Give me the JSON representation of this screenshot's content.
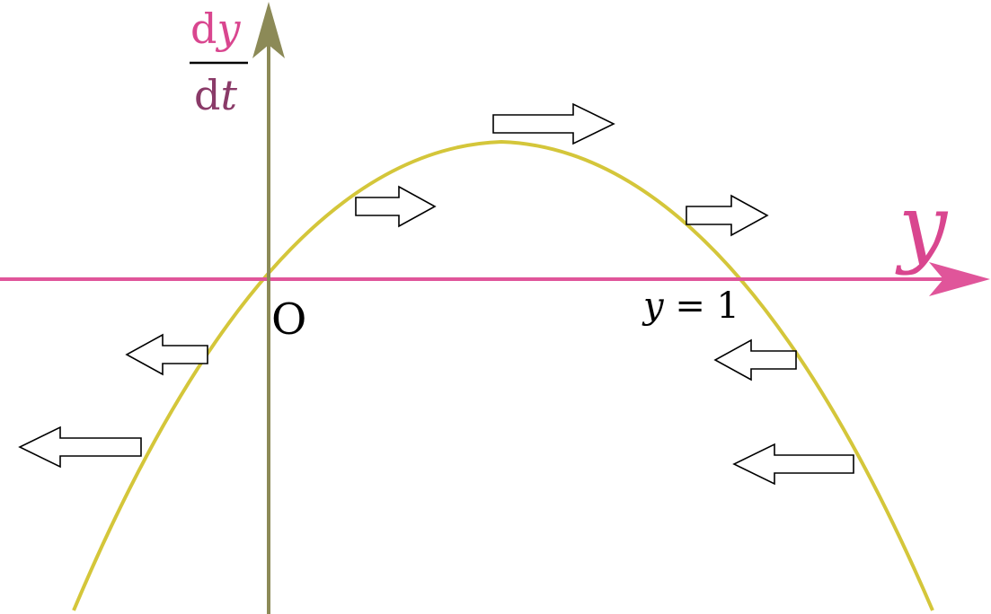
{
  "labels": {
    "dy_numerator_d": "d",
    "dy_numerator_y": "y",
    "dt_denominator_d": "d",
    "dt_denominator_t": "t",
    "horizontal_axis_label": "y",
    "origin_label": "O",
    "root_label_var": "y",
    "root_label_rest": " = 1"
  },
  "colors": {
    "horizontal_axis": "#e0559a",
    "vertical_axis": "#8c8a57",
    "curve": "#d4c63a",
    "numerator_text": "#d9468f",
    "denominator_text": "#8a3a68",
    "text": "#000000",
    "arrow_stroke": "#000000",
    "arrow_fill": "#ffffff"
  },
  "flow_arrows": [
    {
      "direction": "right"
    },
    {
      "direction": "right"
    },
    {
      "direction": "right"
    },
    {
      "direction": "left"
    },
    {
      "direction": "left"
    },
    {
      "direction": "left"
    },
    {
      "direction": "left"
    }
  ]
}
